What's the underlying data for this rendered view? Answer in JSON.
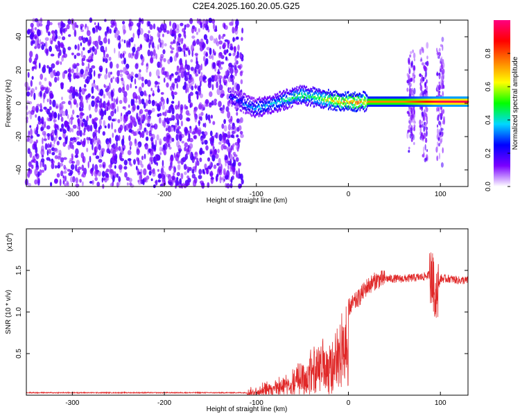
{
  "figure_title": "C2E4.2025.160.20.05.G25",
  "chart_data": [
    {
      "type": "heatmap",
      "title": "",
      "xlabel": "Height of straight line (km)",
      "ylabel": "Frequency (Hz)",
      "xlim": [
        -350,
        130
      ],
      "ylim": [
        -50,
        50
      ],
      "xticks": [
        -300,
        -200,
        -100,
        0,
        100
      ],
      "xtick_labels": [
        "-300",
        "-200",
        "-100",
        "0",
        "100"
      ],
      "yticks": [
        -40,
        -20,
        0,
        20,
        40
      ],
      "ytick_labels": [
        "-40",
        "-20",
        "0",
        "20",
        "40"
      ],
      "colorbar": {
        "label": "Normalized spectral amplitude",
        "range": [
          0,
          1
        ],
        "ticks": [
          0.0,
          0.2,
          0.4,
          0.6,
          0.8
        ],
        "tick_labels": [
          "0.0",
          "0.2",
          "0.4",
          "0.6",
          "0.8"
        ],
        "colormap": [
          "#ffffff",
          "#7a00ff",
          "#0000ff",
          "#00d8ff",
          "#00ff00",
          "#ffff00",
          "#ff8000",
          "#ff0000",
          "#ff0080"
        ]
      },
      "noise_region_km": [
        -350,
        -115
      ],
      "signal_track": {
        "x_km": [
          -130,
          -120,
          -110,
          -100,
          -90,
          -80,
          -70,
          -60,
          -50,
          -40,
          -30,
          -20,
          -10,
          0,
          10,
          20,
          40,
          60,
          70,
          80,
          90,
          100,
          110,
          130
        ],
        "frequency_hz": [
          4,
          2,
          -1,
          -3,
          -1,
          0,
          2,
          4,
          5,
          4,
          3,
          2,
          1,
          1,
          1,
          1,
          1,
          1,
          1,
          1,
          1,
          1,
          1,
          1
        ],
        "amplitude": [
          0.25,
          0.3,
          0.35,
          0.4,
          0.4,
          0.45,
          0.45,
          0.5,
          0.55,
          0.55,
          0.6,
          0.75,
          0.8,
          0.85,
          0.8,
          0.75,
          0.75,
          0.75,
          0.8,
          0.85,
          0.9,
          0.95,
          0.95,
          0.95
        ]
      },
      "broadband_bursts_km": [
        68,
        82,
        100
      ]
    },
    {
      "type": "line",
      "title": "",
      "xlabel": "Height of straight line (km)",
      "ylabel": "SNR (10 * v/v)",
      "scale_label": "(x10",
      "scale_exponent": "4",
      "xlim": [
        -350,
        130
      ],
      "ylim": [
        0,
        2
      ],
      "xticks": [
        -300,
        -200,
        -100,
        0,
        100
      ],
      "xtick_labels": [
        "-300",
        "-200",
        "-100",
        "0",
        "100"
      ],
      "yticks": [
        0.5,
        1.0,
        1.5
      ],
      "ytick_labels": [
        "0.5",
        "1.0",
        "1.5"
      ],
      "color": "#e02828",
      "envelope": {
        "x_km": [
          -350,
          -110,
          -100,
          -90,
          -80,
          -70,
          -60,
          -50,
          -40,
          -30,
          -20,
          -15,
          -10,
          -5,
          0,
          10,
          20,
          30,
          40,
          60,
          80,
          90,
          95,
          100,
          110,
          120,
          130
        ],
        "snr_x1e4": [
          0.03,
          0.03,
          0.08,
          0.12,
          0.16,
          0.22,
          0.3,
          0.4,
          0.55,
          0.65,
          0.6,
          0.8,
          0.95,
          1.0,
          1.05,
          1.15,
          1.3,
          1.38,
          1.4,
          1.4,
          1.42,
          1.45,
          1.2,
          1.4,
          1.4,
          1.38,
          1.38
        ]
      }
    }
  ]
}
